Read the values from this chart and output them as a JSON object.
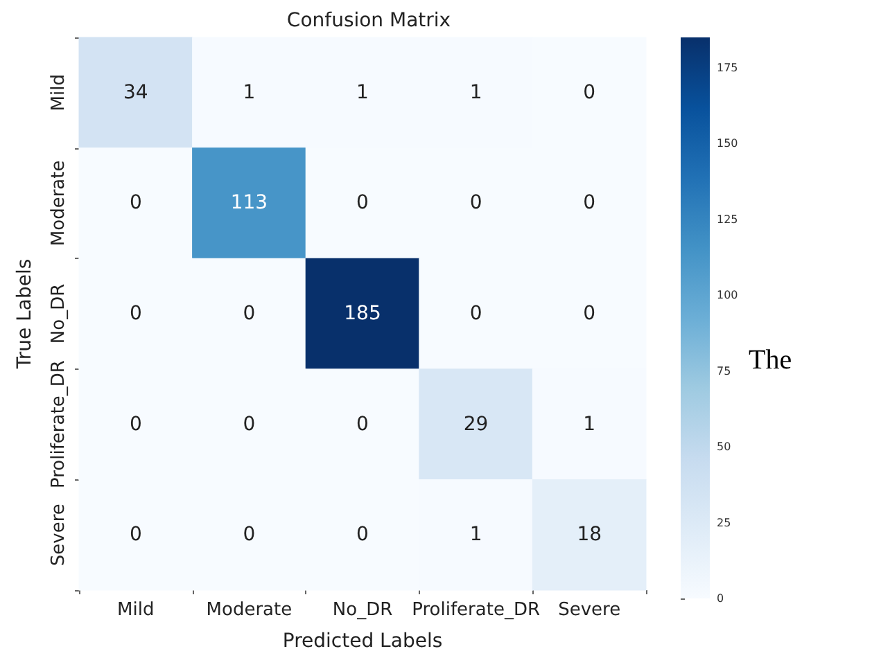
{
  "chart_data": {
    "type": "heatmap",
    "title": "Confusion Matrix",
    "xlabel": "Predicted Labels",
    "ylabel": "True Labels",
    "categories": [
      "Mild",
      "Moderate",
      "No_DR",
      "Proliferate_DR",
      "Severe"
    ],
    "y_categories": [
      "Mild",
      "Moderate",
      "No_DR",
      "Proliferate_DR",
      "Severe"
    ],
    "cells": [
      [
        34,
        1,
        1,
        1,
        0
      ],
      [
        0,
        113,
        0,
        0,
        0
      ],
      [
        0,
        0,
        185,
        0,
        0
      ],
      [
        0,
        0,
        0,
        29,
        1
      ],
      [
        0,
        0,
        0,
        1,
        18
      ]
    ],
    "clim": [
      0,
      185
    ],
    "cticks": [
      0,
      25,
      50,
      75,
      100,
      125,
      150,
      175
    ],
    "data_labels": true,
    "annotations": [
      "The"
    ]
  }
}
